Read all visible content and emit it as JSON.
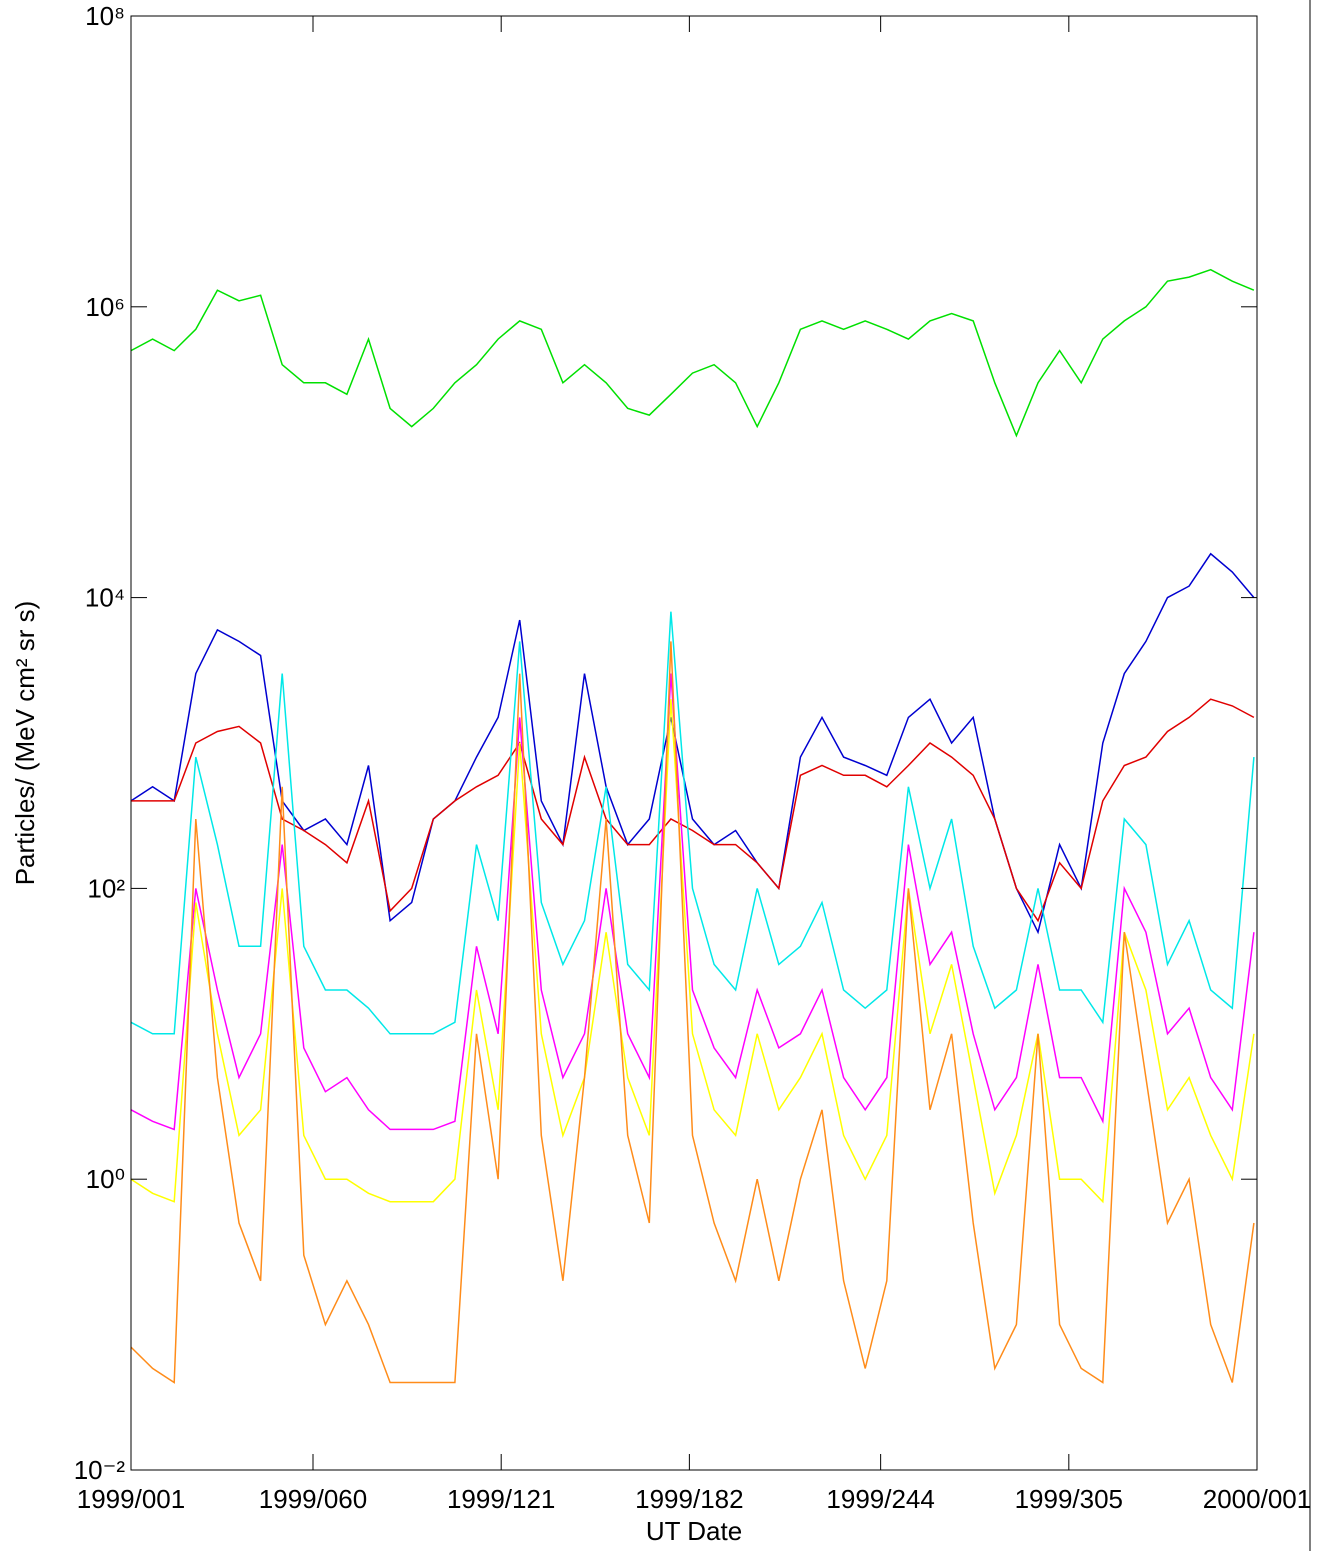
{
  "chart_data": {
    "type": "line",
    "xlabel": "UT Date",
    "ylabel": "Particles/ (MeV cm² sr s)",
    "ylog": true,
    "xlim": [
      1,
      366
    ],
    "ylim": [
      0.01,
      100000000
    ],
    "xticks": [
      {
        "value": 1,
        "label": "1999/001"
      },
      {
        "value": 60,
        "label": "1999/060"
      },
      {
        "value": 121,
        "label": "1999/121"
      },
      {
        "value": 182,
        "label": "1999/182"
      },
      {
        "value": 244,
        "label": "1999/244"
      },
      {
        "value": 305,
        "label": "1999/305"
      },
      {
        "value": 366,
        "label": "2000/001"
      }
    ],
    "yticks": [
      {
        "value": 0.01,
        "label": "10⁻²"
      },
      {
        "value": 1,
        "label": "10⁰"
      },
      {
        "value": 100,
        "label": "10²"
      },
      {
        "value": 10000,
        "label": "10⁴"
      },
      {
        "value": 1000000,
        "label": "10⁶"
      },
      {
        "value": 100000000,
        "label": "10⁸"
      }
    ],
    "x": [
      1,
      8,
      15,
      22,
      29,
      36,
      43,
      50,
      57,
      64,
      71,
      78,
      85,
      92,
      99,
      106,
      113,
      120,
      127,
      134,
      141,
      148,
      155,
      162,
      169,
      176,
      183,
      190,
      197,
      204,
      211,
      218,
      225,
      232,
      239,
      246,
      253,
      260,
      267,
      274,
      281,
      288,
      295,
      302,
      309,
      316,
      323,
      330,
      337,
      344,
      351,
      358,
      365
    ],
    "series": [
      {
        "color": "#00e000",
        "values": [
          500000,
          600000,
          500000,
          700000,
          1300000,
          1100000,
          1200000,
          400000,
          300000,
          300000,
          250000,
          600000,
          200000,
          150000,
          200000,
          300000,
          400000,
          600000,
          800000,
          700000,
          300000,
          400000,
          300000,
          200000,
          180000,
          250000,
          350000,
          400000,
          300000,
          150000,
          300000,
          700000,
          800000,
          700000,
          800000,
          700000,
          600000,
          800000,
          900000,
          800000,
          300000,
          130000,
          300000,
          500000,
          300000,
          600000,
          800000,
          1000000,
          1500000,
          1600000,
          1800000,
          1500000,
          1300000
        ]
      },
      {
        "color": "#0000d0",
        "values": [
          400,
          500,
          400,
          3000,
          6000,
          5000,
          4000,
          400,
          250,
          300,
          200,
          700,
          60,
          80,
          300,
          400,
          800,
          1500,
          7000,
          400,
          200,
          3000,
          500,
          200,
          300,
          1500,
          300,
          200,
          250,
          150,
          100,
          800,
          1500,
          800,
          700,
          600,
          1500,
          2000,
          1000,
          1500,
          300,
          100,
          50,
          200,
          100,
          1000,
          3000,
          5000,
          10000,
          12000,
          20000,
          15000,
          10000
        ]
      },
      {
        "color": "#e00000",
        "values": [
          400,
          400,
          400,
          1000,
          1200,
          1300,
          1000,
          300,
          250,
          200,
          150,
          400,
          70,
          100,
          300,
          400,
          500,
          600,
          1000,
          300,
          200,
          800,
          300,
          200,
          200,
          300,
          250,
          200,
          200,
          150,
          100,
          600,
          700,
          600,
          600,
          500,
          700,
          1000,
          800,
          600,
          300,
          100,
          60,
          150,
          100,
          400,
          700,
          800,
          1200,
          1500,
          2000,
          1800,
          1500
        ]
      },
      {
        "color": "#00e8e8",
        "values": [
          12,
          10,
          10,
          800,
          200,
          40,
          40,
          3000,
          40,
          20,
          20,
          15,
          10,
          10,
          10,
          12,
          200,
          60,
          5000,
          80,
          30,
          60,
          500,
          30,
          20,
          8000,
          100,
          30,
          20,
          100,
          30,
          40,
          80,
          20,
          15,
          20,
          500,
          100,
          300,
          40,
          15,
          20,
          100,
          20,
          20,
          12,
          300,
          200,
          30,
          60,
          20,
          15,
          800
        ]
      },
      {
        "color": "#ff00ff",
        "values": [
          3,
          2.5,
          2.2,
          100,
          20,
          5,
          10,
          200,
          8,
          4,
          5,
          3,
          2.2,
          2.2,
          2.2,
          2.5,
          40,
          10,
          1500,
          20,
          5,
          10,
          100,
          10,
          5,
          3000,
          20,
          8,
          5,
          20,
          8,
          10,
          20,
          5,
          3,
          5,
          200,
          30,
          50,
          10,
          3,
          5,
          30,
          5,
          5,
          2.5,
          100,
          50,
          10,
          15,
          5,
          3,
          50
        ]
      },
      {
        "color": "#ffff00",
        "values": [
          1,
          0.8,
          0.7,
          80,
          10,
          2,
          3,
          100,
          2,
          1,
          1,
          0.8,
          0.7,
          0.7,
          0.7,
          1,
          20,
          3,
          1000,
          10,
          2,
          5,
          50,
          5,
          2,
          2000,
          10,
          3,
          2,
          10,
          3,
          5,
          10,
          2,
          1,
          2,
          100,
          10,
          30,
          5,
          0.8,
          2,
          10,
          1,
          1,
          0.7,
          50,
          20,
          3,
          5,
          2,
          1,
          10
        ]
      },
      {
        "color": "#ff8c1a",
        "values": [
          0.07,
          0.05,
          0.04,
          300,
          5,
          0.5,
          0.2,
          500,
          0.3,
          0.1,
          0.2,
          0.1,
          0.04,
          0.04,
          0.04,
          0.04,
          10,
          1,
          3000,
          2,
          0.2,
          5,
          300,
          2,
          0.5,
          5000,
          2,
          0.5,
          0.2,
          1,
          0.2,
          1,
          3,
          0.2,
          0.05,
          0.2,
          100,
          3,
          10,
          0.5,
          0.05,
          0.1,
          10,
          0.1,
          0.05,
          0.04,
          50,
          5,
          0.5,
          1,
          0.1,
          0.04,
          0.5
        ]
      }
    ]
  }
}
